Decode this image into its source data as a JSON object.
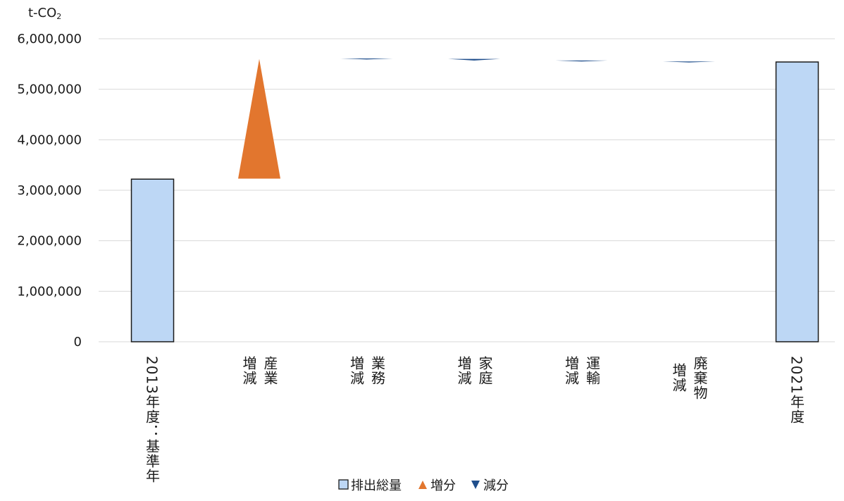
{
  "chart_data": {
    "type": "bar",
    "subtype": "waterfall",
    "unit_label": "t-CO",
    "unit_sub": "2",
    "ylim": [
      0,
      6000000
    ],
    "yticks": [
      {
        "value": 0,
        "label": "0"
      },
      {
        "value": 1000000,
        "label": "1,000,000"
      },
      {
        "value": 2000000,
        "label": "2,000,000"
      },
      {
        "value": 3000000,
        "label": "3,000,000"
      },
      {
        "value": 4000000,
        "label": "4,000,000"
      },
      {
        "value": 5000000,
        "label": "5,000,000"
      },
      {
        "value": 6000000,
        "label": "6,000,000"
      }
    ],
    "grid": true,
    "categories": [
      {
        "label": "2013年度：基準年",
        "columns": [
          "2013年度：基準年"
        ]
      },
      {
        "label": "増減 産業",
        "columns": [
          "産業",
          "増減"
        ]
      },
      {
        "label": "増減 業務",
        "columns": [
          "業務",
          "増減"
        ]
      },
      {
        "label": "増減 家庭",
        "columns": [
          "家庭",
          "増減"
        ]
      },
      {
        "label": "増減 運輸",
        "columns": [
          "運輸",
          "増減"
        ]
      },
      {
        "label": "増減 廃棄物",
        "columns": [
          "廃棄物",
          "増減"
        ]
      },
      {
        "label": "2021年度",
        "columns": [
          "2021年度"
        ]
      }
    ],
    "series": [
      {
        "name": "排出総量",
        "color": "#bdd7f5",
        "stroke": "#1a1a1a",
        "marker": "square",
        "values": [
          3220000,
          null,
          null,
          null,
          null,
          null,
          5540000
        ]
      },
      {
        "name": "増分",
        "color": "#e2762e",
        "marker": "triangle-up",
        "values": [
          null,
          [
            3230000,
            5600000
          ],
          null,
          null,
          null,
          null,
          null
        ]
      },
      {
        "name": "減分",
        "color": "#1f4e8c",
        "marker": "triangle-down",
        "values": [
          null,
          null,
          [
            5610000,
            5600000
          ],
          [
            5600000,
            5570000
          ],
          [
            5570000,
            5550000
          ],
          [
            5550000,
            5540000
          ],
          null
        ]
      }
    ],
    "legend_position": "bottom"
  }
}
